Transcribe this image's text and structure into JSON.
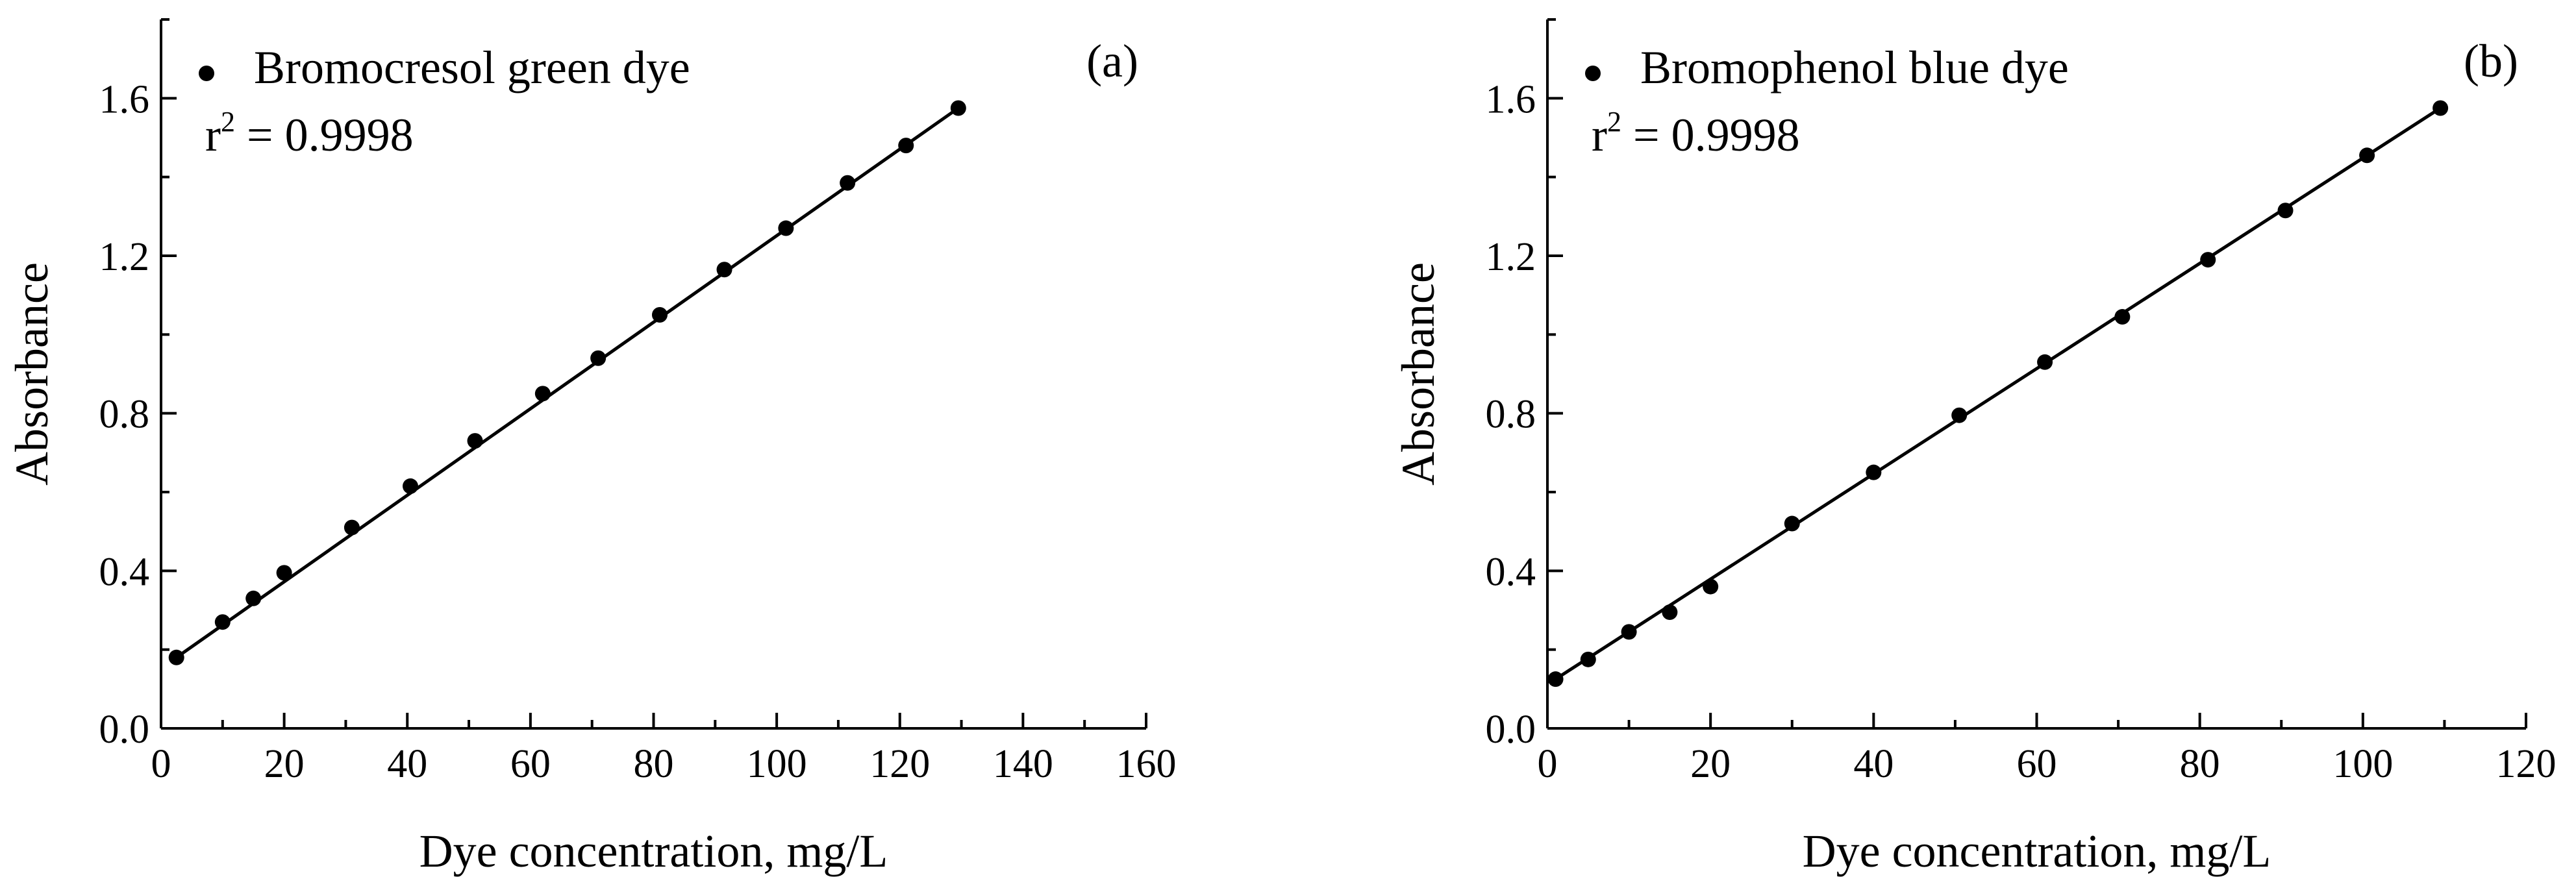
{
  "colors": {
    "ink": "#000000",
    "background": "#ffffff"
  },
  "chart_data": [
    {
      "type": "scatter",
      "panel_label": "(a)",
      "legend_label": "Bromocresol green dye",
      "r2_base": "r",
      "r2_exp": "2",
      "r2_value": " = 0.9998",
      "xlabel": "Dye concentration, mg/L",
      "ylabel": "Absorbance",
      "xlim": [
        0,
        160
      ],
      "ylim": [
        0,
        1.8
      ],
      "xticks": [
        0,
        20,
        40,
        60,
        80,
        100,
        120,
        140,
        160
      ],
      "xtick_labels": [
        "0",
        "20",
        "40",
        "60",
        "80",
        "100",
        "120",
        "140",
        "160"
      ],
      "yticks": [
        0.0,
        0.4,
        0.8,
        1.2,
        1.6
      ],
      "ytick_labels": [
        "0.0",
        "0.4",
        "0.8",
        "1.2",
        "1.6"
      ],
      "legend_position": "top-left",
      "series": [
        {
          "name": "Bromocresol green dye",
          "x": [
            2.5,
            10,
            15,
            20,
            31,
            40.5,
            51,
            62,
            71,
            81,
            91.5,
            101.5,
            111.5,
            121,
            129.5
          ],
          "y": [
            0.18,
            0.27,
            0.33,
            0.395,
            0.51,
            0.615,
            0.73,
            0.85,
            0.94,
            1.05,
            1.165,
            1.27,
            1.385,
            1.48,
            1.575
          ]
        }
      ],
      "fit_line": {
        "x": [
          2.5,
          129.5
        ],
        "y": [
          0.18,
          1.575
        ]
      }
    },
    {
      "type": "scatter",
      "panel_label": "(b)",
      "legend_label": "Bromophenol blue dye",
      "r2_base": "r",
      "r2_exp": "2",
      "r2_value": " = 0.9998",
      "xlabel": "Dye concentration, mg/L",
      "ylabel": "Absorbance",
      "xlim": [
        0,
        120
      ],
      "ylim": [
        0,
        1.8
      ],
      "xticks": [
        0,
        20,
        40,
        60,
        80,
        100,
        120
      ],
      "xtick_labels": [
        "0",
        "20",
        "40",
        "60",
        "80",
        "100",
        "120"
      ],
      "yticks": [
        0.0,
        0.4,
        0.8,
        1.2,
        1.6
      ],
      "ytick_labels": [
        "0.0",
        "0.4",
        "0.8",
        "1.2",
        "1.6"
      ],
      "legend_position": "top-left",
      "series": [
        {
          "name": "Bromophenol blue dye",
          "x": [
            1,
            5,
            10,
            15,
            20,
            30,
            40,
            50.5,
            61,
            70.5,
            81,
            90.5,
            100.5,
            109.5
          ],
          "y": [
            0.125,
            0.175,
            0.245,
            0.295,
            0.36,
            0.52,
            0.65,
            0.795,
            0.93,
            1.045,
            1.19,
            1.315,
            1.455,
            1.575
          ]
        }
      ],
      "fit_line": {
        "x": [
          1,
          109.5
        ],
        "y": [
          0.125,
          1.575
        ]
      }
    }
  ]
}
